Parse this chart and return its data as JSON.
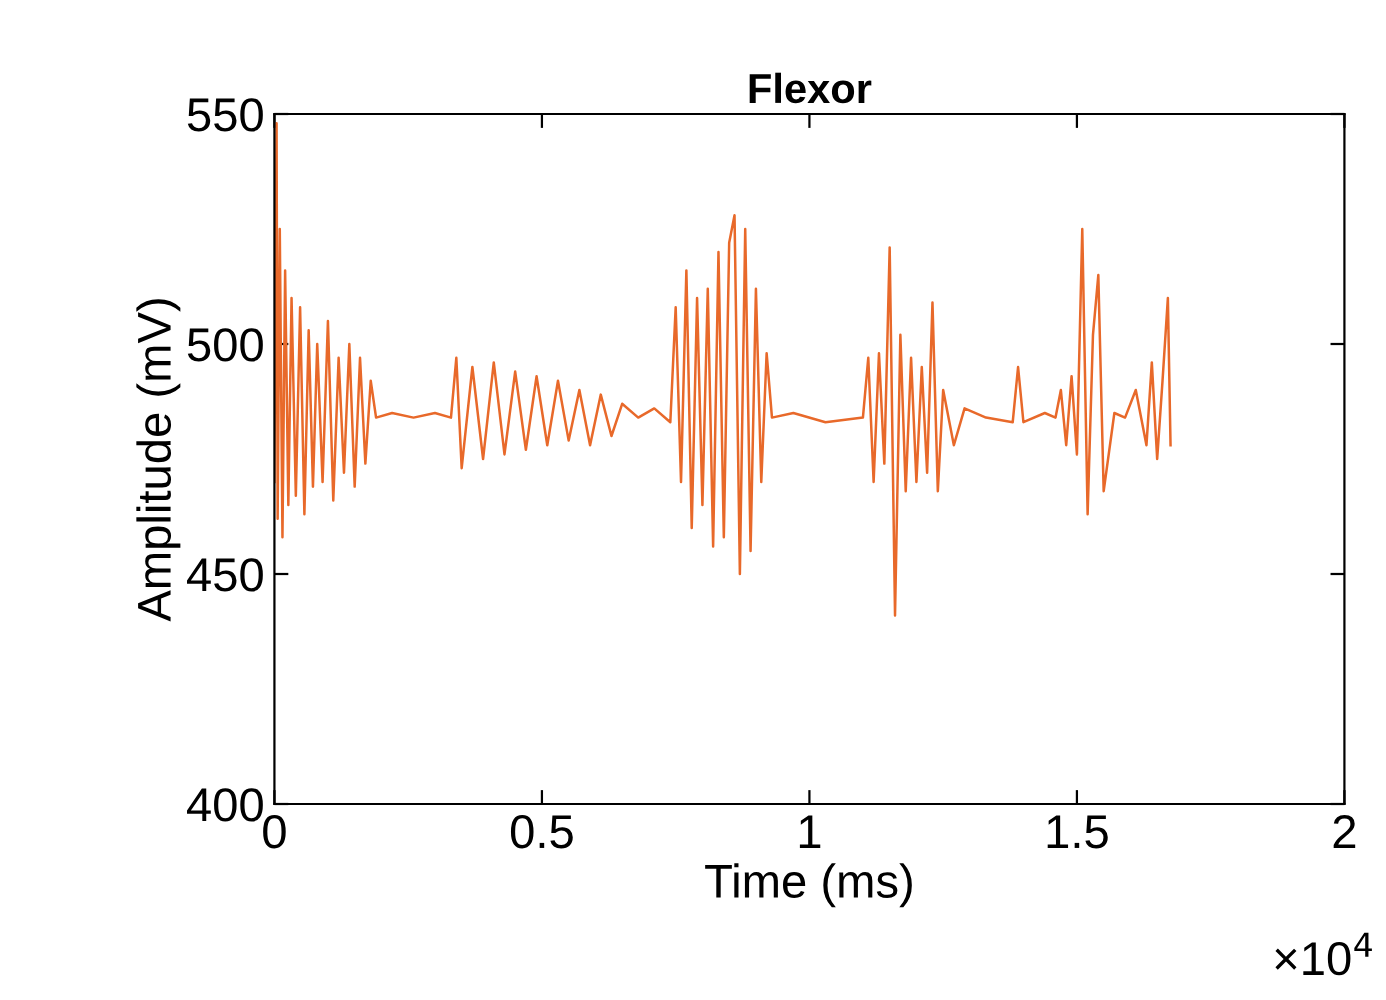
{
  "chart_data": {
    "type": "line",
    "title": "Flexor",
    "xlabel": "Time (ms)",
    "ylabel": "Amplitude (mV)",
    "annotations": [
      "×10$^{4}$"
    ],
    "xlim": [
      0,
      2
    ],
    "xticks": [
      0,
      0.5,
      1,
      1.5,
      2
    ],
    "ylim": [
      400,
      550
    ],
    "yticks": [
      400,
      450,
      500,
      550
    ],
    "grid": false,
    "legend": false,
    "series": [
      {
        "color": "#e8692a",
        "x": [
          0,
          0.004,
          0.006,
          0.01,
          0.015,
          0.02,
          0.026,
          0.032,
          0.04,
          0.048,
          0.056,
          0.064,
          0.072,
          0.08,
          0.09,
          0.1,
          0.11,
          0.12,
          0.13,
          0.14,
          0.15,
          0.16,
          0.17,
          0.18,
          0.19,
          0.22,
          0.26,
          0.3,
          0.33,
          0.34,
          0.35,
          0.37,
          0.39,
          0.41,
          0.43,
          0.45,
          0.47,
          0.49,
          0.51,
          0.53,
          0.55,
          0.57,
          0.59,
          0.61,
          0.63,
          0.65,
          0.68,
          0.71,
          0.74,
          0.75,
          0.76,
          0.77,
          0.78,
          0.79,
          0.8,
          0.81,
          0.82,
          0.83,
          0.84,
          0.85,
          0.86,
          0.87,
          0.88,
          0.89,
          0.9,
          0.91,
          0.92,
          0.93,
          0.97,
          1.03,
          1.1,
          1.11,
          1.12,
          1.13,
          1.14,
          1.15,
          1.16,
          1.17,
          1.18,
          1.19,
          1.2,
          1.21,
          1.22,
          1.23,
          1.24,
          1.25,
          1.27,
          1.29,
          1.33,
          1.38,
          1.39,
          1.4,
          1.44,
          1.46,
          1.47,
          1.48,
          1.49,
          1.5,
          1.51,
          1.52,
          1.53,
          1.54,
          1.55,
          1.57,
          1.59,
          1.61,
          1.63,
          1.64,
          1.65,
          1.66,
          1.67,
          1.675
        ],
        "values": [
          470,
          548,
          462,
          525,
          458,
          516,
          465,
          510,
          467,
          508,
          463,
          503,
          469,
          500,
          470,
          505,
          466,
          497,
          472,
          500,
          469,
          497,
          474,
          492,
          484,
          485,
          484,
          485,
          484,
          497,
          473,
          495,
          475,
          496,
          476,
          494,
          477,
          493,
          478,
          492,
          479,
          490,
          478,
          489,
          480,
          487,
          484,
          486,
          483,
          508,
          470,
          516,
          460,
          510,
          465,
          512,
          456,
          520,
          458,
          522,
          528,
          450,
          525,
          455,
          512,
          470,
          498,
          484,
          485,
          483,
          484,
          497,
          470,
          498,
          474,
          521,
          441,
          502,
          468,
          497,
          470,
          495,
          472,
          509,
          468,
          490,
          478,
          486,
          484,
          483,
          495,
          483,
          485,
          484,
          490,
          478,
          493,
          476,
          525,
          463,
          502,
          515,
          468,
          485,
          484,
          490,
          478,
          496,
          475,
          492,
          510,
          478
        ]
      }
    ]
  }
}
